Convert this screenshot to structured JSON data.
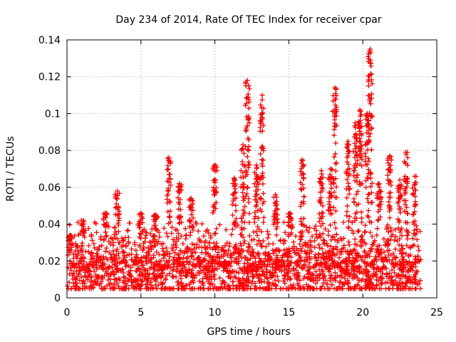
{
  "chart_data": {
    "type": "scatter",
    "title": "Day 234 of 2014, Rate Of TEC Index for receiver cpar",
    "xlabel": "GPS time / hours",
    "ylabel": "ROTI / TECUs",
    "xlim": [
      0,
      25
    ],
    "ylim": [
      0,
      0.14
    ],
    "xticks": [
      0,
      5,
      10,
      15,
      20,
      25
    ],
    "yticks": [
      0,
      0.02,
      0.04,
      0.06,
      0.08,
      0.1,
      0.12,
      0.14
    ],
    "xtick_labels": [
      "0",
      "5",
      "10",
      "15",
      "20",
      "25"
    ],
    "ytick_labels": [
      "0",
      "0.02",
      "0.04",
      "0.06",
      "0.08",
      "0.1",
      "0.12",
      "0.14"
    ],
    "grid": true,
    "marker": "+",
    "series": [
      {
        "name": "cpar",
        "color": "#ff0000",
        "baseline_envelope": {
          "x_range": [
            0.0,
            23.9
          ],
          "typical_min": 0.005,
          "typical_max": 0.035,
          "typical_center": 0.016
        },
        "spike_clusters": [
          {
            "x": 0.2,
            "y_max": 0.034
          },
          {
            "x": 1.1,
            "y_max": 0.042
          },
          {
            "x": 2.6,
            "y_max": 0.046
          },
          {
            "x": 3.4,
            "y_max": 0.058
          },
          {
            "x": 5.0,
            "y_max": 0.046
          },
          {
            "x": 6.0,
            "y_max": 0.045
          },
          {
            "x": 6.9,
            "y_max": 0.076
          },
          {
            "x": 7.6,
            "y_max": 0.062
          },
          {
            "x": 8.4,
            "y_max": 0.054
          },
          {
            "x": 10.0,
            "y_max": 0.072
          },
          {
            "x": 11.3,
            "y_max": 0.065
          },
          {
            "x": 11.9,
            "y_max": 0.083
          },
          {
            "x": 12.2,
            "y_max": 0.118
          },
          {
            "x": 12.8,
            "y_max": 0.072
          },
          {
            "x": 13.2,
            "y_max": 0.11
          },
          {
            "x": 14.1,
            "y_max": 0.056
          },
          {
            "x": 15.1,
            "y_max": 0.046
          },
          {
            "x": 15.9,
            "y_max": 0.075
          },
          {
            "x": 17.2,
            "y_max": 0.069
          },
          {
            "x": 17.8,
            "y_max": 0.07
          },
          {
            "x": 18.1,
            "y_max": 0.114
          },
          {
            "x": 19.0,
            "y_max": 0.085
          },
          {
            "x": 19.5,
            "y_max": 0.095
          },
          {
            "x": 19.8,
            "y_max": 0.102
          },
          {
            "x": 20.3,
            "y_max": 0.1
          },
          {
            "x": 20.5,
            "y_max": 0.135
          },
          {
            "x": 21.1,
            "y_max": 0.062
          },
          {
            "x": 21.8,
            "y_max": 0.077
          },
          {
            "x": 22.5,
            "y_max": 0.064
          },
          {
            "x": 22.9,
            "y_max": 0.079
          },
          {
            "x": 23.5,
            "y_max": 0.066
          }
        ]
      }
    ]
  }
}
